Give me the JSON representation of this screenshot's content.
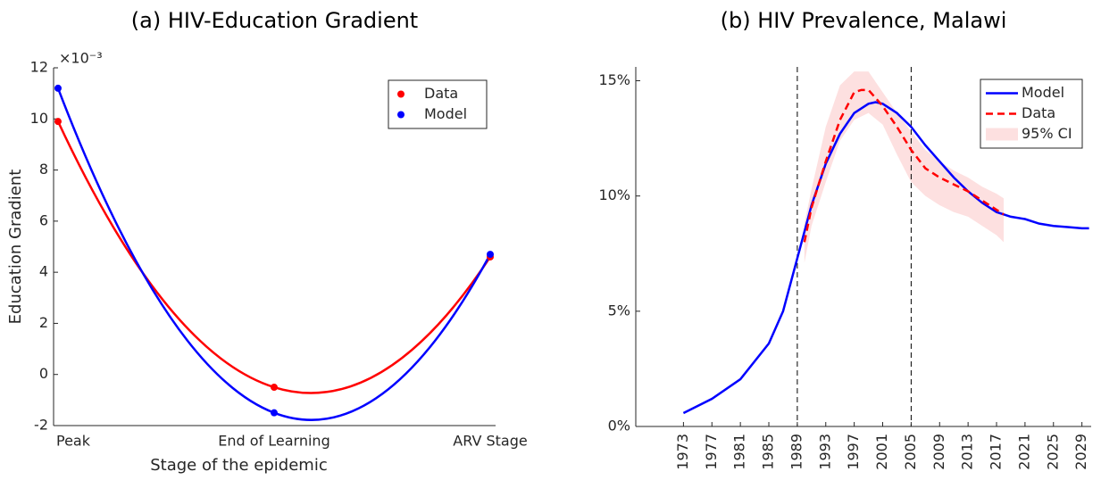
{
  "chart_data": [
    {
      "type": "line",
      "title": "(a) HIV-Education Gradient",
      "xlabel": "Stage of the epidemic",
      "ylabel": "Education Gradient",
      "yexponent": "×10⁻³",
      "categories": [
        "Peak",
        "End of Learning",
        "ARV Stage"
      ],
      "smooth": true,
      "markers": true,
      "legend": "upper right",
      "series": [
        {
          "name": "Data",
          "color": "#ff0000",
          "values": [
            9.9,
            -0.5,
            4.6
          ]
        },
        {
          "name": "Model",
          "color": "#0000ff",
          "values": [
            11.2,
            -1.5,
            4.7
          ]
        }
      ],
      "ylim": [
        -2,
        12
      ],
      "yticks": [
        -2,
        0,
        2,
        4,
        6,
        8,
        10,
        12
      ]
    },
    {
      "type": "line",
      "title": "(b) HIV Prevalence, Malawi",
      "legend": "upper right",
      "series": [
        {
          "name": "Model",
          "color": "#0000ff",
          "dash": false,
          "x": [
            1973,
            1977,
            1981,
            1985,
            1987,
            1989,
            1991,
            1993,
            1995,
            1997,
            1999,
            2000,
            2001,
            2003,
            2005,
            2007,
            2009,
            2011,
            2013,
            2015,
            2017,
            2019,
            2021,
            2023,
            2025,
            2027,
            2029,
            2030
          ],
          "values": [
            0.58,
            1.2,
            2.05,
            3.6,
            5.0,
            7.3,
            9.6,
            11.4,
            12.7,
            13.6,
            14.0,
            14.07,
            14.0,
            13.6,
            13.0,
            12.2,
            11.5,
            10.8,
            10.2,
            9.7,
            9.3,
            9.1,
            9.0,
            8.8,
            8.7,
            8.65,
            8.6,
            8.6
          ]
        },
        {
          "name": "Data",
          "color": "#ff0000",
          "dash": true,
          "x": [
            1990,
            1991,
            1993,
            1995,
            1997,
            1998,
            1999,
            2001,
            2003,
            2005,
            2007,
            2009,
            2011,
            2013,
            2015,
            2017,
            2018
          ],
          "values": [
            8.0,
            9.5,
            11.5,
            13.3,
            14.5,
            14.6,
            14.6,
            13.9,
            13.0,
            12.0,
            11.2,
            10.8,
            10.5,
            10.2,
            9.8,
            9.4,
            9.2
          ]
        }
      ],
      "band": {
        "name": "95% CI",
        "color": "#fde0e0",
        "x": [
          1990,
          1991,
          1993,
          1995,
          1997,
          1999,
          2001,
          2003,
          2005,
          2007,
          2009,
          2011,
          2013,
          2015,
          2017,
          2018
        ],
        "upper": [
          8.8,
          10.3,
          13.0,
          14.8,
          15.4,
          15.4,
          14.5,
          13.6,
          12.8,
          12.0,
          11.5,
          11.1,
          10.8,
          10.4,
          10.1,
          9.9
        ],
        "lower": [
          7.1,
          8.7,
          10.6,
          12.4,
          13.3,
          13.6,
          13.1,
          11.8,
          10.6,
          10.0,
          9.6,
          9.3,
          9.1,
          8.7,
          8.3,
          8.0
        ]
      },
      "vlines": [
        1989,
        2005
      ],
      "xlim": [
        1966.3,
        2030.3
      ],
      "xticks": [
        1973,
        1977,
        1981,
        1985,
        1989,
        1993,
        1997,
        2001,
        2005,
        2009,
        2013,
        2017,
        2021,
        2025,
        2029
      ],
      "ylim": [
        0,
        15.6
      ],
      "yticks": [
        {
          "value": 0,
          "label": "0%"
        },
        {
          "value": 5,
          "label": "5%"
        },
        {
          "value": 10,
          "label": "10%"
        },
        {
          "value": 15,
          "label": "15%"
        }
      ]
    }
  ]
}
